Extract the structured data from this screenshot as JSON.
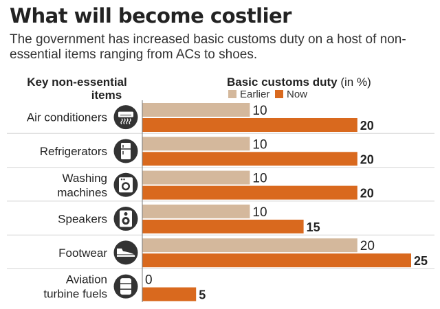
{
  "header": {
    "title": "What will become costlier",
    "subtitle": "The government has increased basic customs duty on a host of non-essential items ranging from ACs to shoes."
  },
  "chart_data": {
    "type": "bar",
    "orientation": "horizontal",
    "category_header": [
      "Key non-essential",
      "items"
    ],
    "value_header_bold": "Basic customs duty",
    "value_header_unit": " (in %)",
    "categories": [
      "Air conditioners",
      "Refrigerators",
      "Washing machines",
      "Speakers",
      "Footwear",
      "Aviation turbine fuels"
    ],
    "category_lines": [
      [
        "Air conditioners"
      ],
      [
        "Refrigerators"
      ],
      [
        "Washing",
        "machines"
      ],
      [
        "Speakers"
      ],
      [
        "Footwear"
      ],
      [
        "Aviation",
        "turbine fuels"
      ]
    ],
    "icons": [
      "air-conditioner-icon",
      "refrigerator-icon",
      "washing-machine-icon",
      "speaker-icon",
      "footwear-icon",
      "fuel-barrel-icon"
    ],
    "series": [
      {
        "name": "Earlier",
        "values": [
          10,
          10,
          10,
          10,
          20,
          0
        ],
        "color": "#d4b89c"
      },
      {
        "name": "Now",
        "values": [
          20,
          20,
          20,
          15,
          25,
          5
        ],
        "color": "#d9691e"
      }
    ],
    "xlim": [
      0,
      25
    ],
    "legend_position": "top",
    "grid": false
  }
}
